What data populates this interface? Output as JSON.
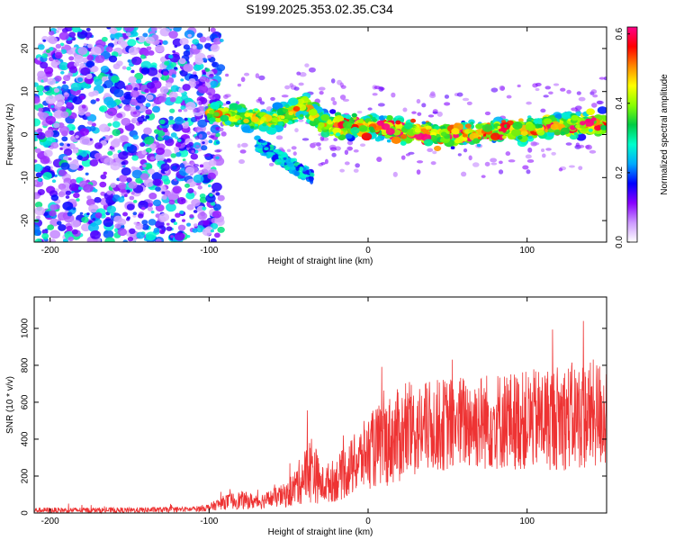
{
  "title": "S199.2025.353.02.35.C34",
  "chart_data": [
    {
      "type": "heatmap",
      "name": "spectrogram",
      "xlabel": "Height of straight line (km)",
      "ylabel": "Frequency (Hz)",
      "xlim": [
        -210,
        150
      ],
      "ylim": [
        -25,
        25
      ],
      "xticks": [
        -200,
        -100,
        0,
        100
      ],
      "yticks": [
        -20,
        -10,
        0,
        10,
        20
      ],
      "xtick_labels": [
        "-200",
        "-100",
        "0",
        "100"
      ],
      "ytick_labels": [
        "-20",
        "-10",
        "0",
        "10",
        "20"
      ],
      "colorbar": {
        "label": "Normalized spectral amplitude",
        "range": [
          0.0,
          0.62
        ],
        "ticks": [
          0.0,
          0.2,
          0.4,
          0.6
        ],
        "tick_labels": [
          "0.0",
          "0.2",
          "0.4",
          "0.6"
        ],
        "colormap": [
          "#ffffff",
          "#cc99ff",
          "#8800ff",
          "#0000ff",
          "#00aaff",
          "#00ffcc",
          "#00cc44",
          "#88ff00",
          "#ffff00",
          "#ff8800",
          "#ff0000",
          "#ff0088"
        ]
      },
      "features": {
        "noise_region_x": [
          -210,
          -100
        ],
        "band_center_freq": [
          [
            -100,
            5
          ],
          [
            -80,
            4
          ],
          [
            -60,
            3
          ],
          [
            -40,
            7
          ],
          [
            -30,
            3
          ],
          [
            -20,
            2
          ],
          [
            0,
            2
          ],
          [
            20,
            1
          ],
          [
            40,
            0
          ],
          [
            60,
            0
          ],
          [
            80,
            1
          ],
          [
            100,
            1
          ],
          [
            120,
            2
          ],
          [
            150,
            3
          ]
        ],
        "band_half_width": 3.5
      }
    },
    {
      "type": "line",
      "name": "snr",
      "xlabel": "Height of straight line (km)",
      "ylabel": "SNR (10 * v/v)",
      "xlim": [
        -210,
        150
      ],
      "ylim": [
        0,
        1170
      ],
      "xticks": [
        -200,
        -100,
        0,
        100
      ],
      "yticks": [
        0,
        200,
        400,
        600,
        800,
        1000
      ],
      "xtick_labels": [
        "-200",
        "-100",
        "0",
        "100"
      ],
      "ytick_labels": [
        "0",
        "200",
        "400",
        "600",
        "800",
        "1000"
      ],
      "color": "#ee3333",
      "envelope": {
        "x": [
          -210,
          -150,
          -110,
          -100,
          -90,
          -80,
          -70,
          -60,
          -50,
          -40,
          -35,
          -30,
          -20,
          -10,
          0,
          10,
          20,
          40,
          60,
          80,
          100,
          120,
          140,
          150
        ],
        "mean": [
          15,
          15,
          20,
          30,
          60,
          70,
          60,
          80,
          100,
          200,
          250,
          150,
          180,
          250,
          330,
          380,
          420,
          470,
          490,
          500,
          500,
          520,
          530,
          540
        ],
        "spread": [
          15,
          15,
          15,
          20,
          40,
          50,
          40,
          50,
          70,
          150,
          200,
          100,
          120,
          160,
          200,
          240,
          260,
          250,
          260,
          270,
          270,
          290,
          300,
          300
        ]
      }
    }
  ]
}
